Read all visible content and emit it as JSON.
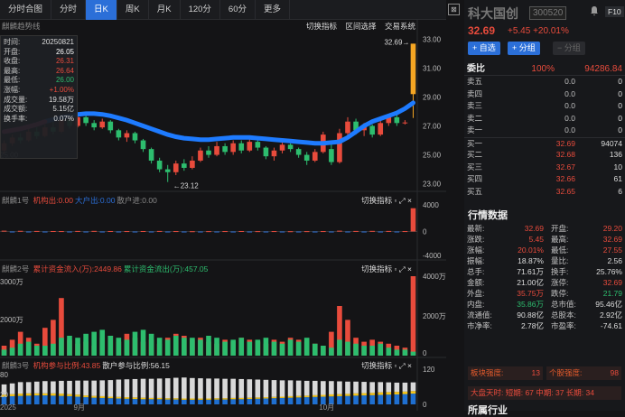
{
  "tabs": [
    "分时合图",
    "分时",
    "日K",
    "周K",
    "月K",
    "120分",
    "60分",
    "更多"
  ],
  "active_tab": "日K",
  "main_chart": {
    "indicator": "麒麟趋势线",
    "actions": [
      "切换指标",
      "区间选择",
      "交易系统"
    ],
    "high_label": "32.69",
    "low_label": "23.12",
    "y_ticks": [
      "33.00",
      "31.00",
      "29.00",
      "27.00",
      "25.00",
      "23.00"
    ]
  },
  "info_box": {
    "rows": [
      {
        "label": "时间:",
        "value": "20250821",
        "color": "#dddddd"
      },
      {
        "label": "开盘:",
        "value": "26.05",
        "color": "#ffffff"
      },
      {
        "label": "收盘:",
        "value": "26.31",
        "color": "#e84b3c"
      },
      {
        "label": "最高:",
        "value": "26.64",
        "color": "#e84b3c"
      },
      {
        "label": "最低:",
        "value": "26.00",
        "color": "#2dbd6e"
      },
      {
        "label": "涨幅:",
        "value": "+1.00%",
        "color": "#e84b3c"
      },
      {
        "label": "成交量:",
        "value": "19.58万",
        "color": "#dddddd"
      },
      {
        "label": "成交额:",
        "value": "5.15亿",
        "color": "#dddddd"
      },
      {
        "label": "换手率:",
        "value": "0.07%",
        "color": "#dddddd"
      }
    ]
  },
  "sub1": {
    "title": "麒麟1号",
    "items": [
      {
        "text": "机构出:0.00",
        "color": "#e84b3c"
      },
      {
        "text": "大户出:0.00",
        "color": "#2b6fd8"
      },
      {
        "text": "散户进:0.00",
        "color": "#888888"
      }
    ],
    "action": "切换指标",
    "y_ticks": [
      "4000",
      "0",
      "-4000"
    ]
  },
  "sub2": {
    "title": "麒麟2号",
    "items": [
      {
        "text": "累计资金流入(万):2449.86",
        "color": "#e84b3c"
      },
      {
        "text": "累计资金流出(万):457.05",
        "color": "#2dbd6e"
      }
    ],
    "action": "切换指标",
    "y_ticks": [
      "4000万",
      "2000万",
      "0"
    ],
    "left_ticks": [
      "3000万",
      "2000万"
    ]
  },
  "sub3": {
    "title": "麒麟3号",
    "items": [
      {
        "text": "机构参与比例:43.85",
        "color": "#e84b3c"
      },
      {
        "text": "散户参与比例:56.15",
        "color": "#dddddd"
      }
    ],
    "action": "切换指标",
    "y_ticks": [
      "120",
      "0"
    ],
    "left_ticks": [
      "80",
      "20"
    ]
  },
  "x_labels": [
    "2025",
    "9月",
    "10月"
  ],
  "stock": {
    "name": "科大国创",
    "code": "300520",
    "f10": "F10",
    "price": "32.69",
    "change": "+5.45",
    "pct": "+20.01%"
  },
  "buttons": {
    "add": "+ 自选",
    "group": "+ 分组",
    "ungroup": "− 分组"
  },
  "orderbook": {
    "title": "委比",
    "ratio": "100%",
    "diff": "94286.84",
    "rows": [
      {
        "label": "卖五",
        "price": "0.0",
        "qty": "0",
        "color": "#c0c0c0"
      },
      {
        "label": "卖四",
        "price": "0.0",
        "qty": "0",
        "color": "#c0c0c0"
      },
      {
        "label": "卖三",
        "price": "0.0",
        "qty": "0",
        "color": "#c0c0c0"
      },
      {
        "label": "卖二",
        "price": "0.0",
        "qty": "0",
        "color": "#c0c0c0"
      },
      {
        "label": "卖一",
        "price": "0.0",
        "qty": "0",
        "color": "#c0c0c0"
      },
      {
        "label": "买一",
        "price": "32.69",
        "qty": "94074",
        "color": "#e84b3c"
      },
      {
        "label": "买二",
        "price": "32.68",
        "qty": "136",
        "color": "#e84b3c"
      },
      {
        "label": "买三",
        "price": "32.67",
        "qty": "10",
        "color": "#e84b3c"
      },
      {
        "label": "买四",
        "price": "32.66",
        "qty": "61",
        "color": "#e84b3c"
      },
      {
        "label": "买五",
        "price": "32.65",
        "qty": "6",
        "color": "#e84b3c"
      }
    ]
  },
  "market": {
    "title": "行情数据",
    "rows": [
      {
        "l1": "最新:",
        "v1": "32.69",
        "c1": "#e84b3c",
        "l2": "开盘:",
        "v2": "29.20",
        "c2": "#e84b3c"
      },
      {
        "l1": "涨跌:",
        "v1": "5.45",
        "c1": "#e84b3c",
        "l2": "最高:",
        "v2": "32.69",
        "c2": "#e84b3c"
      },
      {
        "l1": "涨幅:",
        "v1": "20.01%",
        "c1": "#e84b3c",
        "l2": "最低:",
        "v2": "27.55",
        "c2": "#e84b3c"
      },
      {
        "l1": "振幅:",
        "v1": "18.87%",
        "c1": "#dddddd",
        "l2": "量比:",
        "v2": "2.56",
        "c2": "#dddddd"
      },
      {
        "l1": "总手:",
        "v1": "71.61万",
        "c1": "#dddddd",
        "l2": "换手:",
        "v2": "25.76%",
        "c2": "#dddddd"
      },
      {
        "l1": "金额:",
        "v1": "21.00亿",
        "c1": "#dddddd",
        "l2": "涨停:",
        "v2": "32.69",
        "c2": "#e84b3c"
      },
      {
        "l1": "外盘:",
        "v1": "35.75万",
        "c1": "#e84b3c",
        "l2": "跌停:",
        "v2": "21.79",
        "c2": "#2dbd6e"
      },
      {
        "l1": "内盘:",
        "v1": "35.86万",
        "c1": "#2dbd6e",
        "l2": "总市值:",
        "v2": "95.46亿",
        "c2": "#dddddd"
      },
      {
        "l1": "流通值:",
        "v1": "90.88亿",
        "c1": "#dddddd",
        "l2": "总股本:",
        "v2": "2.92亿",
        "c2": "#dddddd"
      },
      {
        "l1": "市净率:",
        "v1": "2.78亿",
        "c1": "#dddddd",
        "l2": "市盈率:",
        "v2": "-74.61",
        "c2": "#dddddd"
      }
    ]
  },
  "strength": {
    "block_label": "板块强度:",
    "block_value": "13",
    "stock_label": "个股强度:",
    "stock_value": "98"
  },
  "days": "大盘天时: 短期: 67 中期: 37 长期: 34",
  "industry_title": "所属行业",
  "candles": [
    {
      "o": 25.3,
      "c": 25.8,
      "h": 26.0,
      "l": 25.1
    },
    {
      "o": 25.8,
      "c": 26.2,
      "h": 26.4,
      "l": 25.6
    },
    {
      "o": 26.2,
      "c": 26.0,
      "h": 26.5,
      "l": 25.8
    },
    {
      "o": 26.0,
      "c": 26.6,
      "h": 26.8,
      "l": 25.9
    },
    {
      "o": 26.6,
      "c": 26.3,
      "h": 26.9,
      "l": 26.1
    },
    {
      "o": 26.3,
      "c": 26.9,
      "h": 27.1,
      "l": 26.2
    },
    {
      "o": 26.9,
      "c": 26.6,
      "h": 27.3,
      "l": 26.4
    },
    {
      "o": 26.6,
      "c": 27.4,
      "h": 27.6,
      "l": 26.5
    },
    {
      "o": 27.4,
      "c": 27.0,
      "h": 27.7,
      "l": 26.8
    },
    {
      "o": 27.0,
      "c": 27.6,
      "h": 27.9,
      "l": 26.9
    },
    {
      "o": 27.6,
      "c": 27.2,
      "h": 27.8,
      "l": 27.0
    },
    {
      "o": 27.2,
      "c": 26.9,
      "h": 27.4,
      "l": 26.7
    },
    {
      "o": 26.9,
      "c": 27.3,
      "h": 27.5,
      "l": 26.8
    },
    {
      "o": 27.3,
      "c": 26.7,
      "h": 27.4,
      "l": 26.5
    },
    {
      "o": 26.7,
      "c": 26.2,
      "h": 26.8,
      "l": 26.0
    },
    {
      "o": 26.2,
      "c": 26.5,
      "h": 26.7,
      "l": 25.9
    },
    {
      "o": 26.5,
      "c": 26.0,
      "h": 26.6,
      "l": 25.8
    },
    {
      "o": 26.0,
      "c": 25.4,
      "h": 26.1,
      "l": 25.2
    },
    {
      "o": 25.4,
      "c": 24.6,
      "h": 25.5,
      "l": 24.4
    },
    {
      "o": 24.6,
      "c": 24.0,
      "h": 24.8,
      "l": 23.8
    },
    {
      "o": 24.0,
      "c": 23.8,
      "h": 24.3,
      "l": 23.12
    },
    {
      "o": 23.8,
      "c": 24.4,
      "h": 24.6,
      "l": 23.6
    },
    {
      "o": 24.4,
      "c": 24.1,
      "h": 24.7,
      "l": 23.9
    },
    {
      "o": 24.1,
      "c": 24.6,
      "h": 24.9,
      "l": 24.0
    },
    {
      "o": 24.6,
      "c": 25.3,
      "h": 25.5,
      "l": 24.5
    },
    {
      "o": 25.3,
      "c": 25.0,
      "h": 25.6,
      "l": 24.8
    },
    {
      "o": 25.0,
      "c": 25.6,
      "h": 25.9,
      "l": 24.9
    },
    {
      "o": 25.6,
      "c": 25.2,
      "h": 25.8,
      "l": 25.0
    },
    {
      "o": 25.2,
      "c": 25.8,
      "h": 26.0,
      "l": 25.0
    },
    {
      "o": 25.8,
      "c": 25.3,
      "h": 26.0,
      "l": 25.1
    },
    {
      "o": 25.3,
      "c": 25.9,
      "h": 26.1,
      "l": 25.2
    },
    {
      "o": 25.9,
      "c": 25.5,
      "h": 26.0,
      "l": 25.3
    },
    {
      "o": 25.5,
      "c": 24.9,
      "h": 25.6,
      "l": 24.7
    },
    {
      "o": 24.9,
      "c": 25.3,
      "h": 25.5,
      "l": 24.6
    },
    {
      "o": 25.3,
      "c": 25.7,
      "h": 25.9,
      "l": 25.1
    },
    {
      "o": 25.7,
      "c": 25.4,
      "h": 25.8,
      "l": 25.2
    },
    {
      "o": 25.4,
      "c": 25.0,
      "h": 25.5,
      "l": 24.8
    },
    {
      "o": 25.0,
      "c": 24.6,
      "h": 25.2,
      "l": 24.3
    },
    {
      "o": 24.6,
      "c": 25.2,
      "h": 25.4,
      "l": 24.5
    },
    {
      "o": 25.2,
      "c": 26.4,
      "h": 26.6,
      "l": 25.1
    },
    {
      "o": 25.4,
      "c": 24.5,
      "h": 26.0,
      "l": 24.3
    },
    {
      "o": 24.5,
      "c": 26.5,
      "h": 26.8,
      "l": 24.4
    },
    {
      "o": 26.5,
      "c": 27.3,
      "h": 27.6,
      "l": 26.3
    },
    {
      "o": 27.3,
      "c": 26.7,
      "h": 27.5,
      "l": 26.4
    },
    {
      "o": 26.7,
      "c": 27.0,
      "h": 27.2,
      "l": 26.3
    },
    {
      "o": 27.0,
      "c": 26.4,
      "h": 27.1,
      "l": 26.2
    },
    {
      "o": 26.4,
      "c": 27.2,
      "h": 27.4,
      "l": 26.3
    },
    {
      "o": 27.2,
      "c": 27.6,
      "h": 27.8,
      "l": 27.0
    },
    {
      "o": 27.6,
      "c": 27.2,
      "h": 27.8,
      "l": 27.0
    },
    {
      "o": 27.2,
      "c": 27.24,
      "h": 27.4,
      "l": 27.1
    },
    {
      "o": 29.2,
      "c": 32.69,
      "h": 32.69,
      "l": 27.55
    }
  ],
  "trend": [
    26.6,
    26.7,
    26.8,
    26.95,
    27.1,
    27.3,
    27.45,
    27.6,
    27.7,
    27.8,
    27.85,
    27.85,
    27.8,
    27.7,
    27.55,
    27.4,
    27.2,
    27.0,
    26.8,
    26.6,
    26.4,
    26.25,
    26.15,
    26.1,
    26.05,
    26.05,
    26.1,
    26.15,
    26.2,
    26.2,
    26.2,
    26.15,
    26.1,
    26.05,
    26.0,
    25.95,
    25.9,
    25.85,
    25.8,
    25.8,
    25.85,
    25.9,
    26.2,
    26.6,
    27.0,
    27.3,
    27.5,
    27.7,
    27.9,
    28.2,
    28.6
  ],
  "flow_in": [
    500,
    800,
    1200,
    900,
    600,
    1400,
    1800,
    2900,
    800,
    600,
    700,
    500,
    900,
    1000,
    700,
    1100,
    900,
    700,
    800,
    600,
    900,
    1100,
    1000,
    800,
    900,
    700,
    600,
    800,
    700,
    900,
    800,
    700,
    600,
    800,
    700,
    900,
    800,
    700,
    600,
    500,
    1200,
    2500,
    1800,
    900,
    700,
    800,
    700,
    600,
    500,
    400,
    4000
  ],
  "flow_out": [
    300,
    400,
    600,
    700,
    500,
    500,
    600,
    900,
    1000,
    900,
    1100,
    1200,
    1300,
    1000,
    900,
    800,
    1200,
    1300,
    1100,
    900,
    800,
    1000,
    900,
    900,
    800,
    1000,
    900,
    700,
    800,
    900,
    700,
    800,
    900,
    700,
    600,
    800,
    700,
    900,
    600,
    500,
    400,
    800,
    700,
    600,
    500,
    500,
    600,
    400,
    300,
    300,
    200
  ],
  "sub1_vals": [
    120,
    -80,
    100,
    -60,
    80,
    -90,
    70,
    60,
    -50,
    80,
    -70,
    90,
    -60,
    70,
    -80,
    60,
    -50,
    70,
    -60,
    80,
    -70,
    60,
    -50,
    40,
    -60,
    50,
    -40,
    60,
    -50,
    70,
    -60,
    50,
    -40,
    60,
    -50,
    40,
    -60,
    50,
    -40,
    60,
    -80,
    120,
    -60,
    80,
    -70,
    90,
    -60,
    80,
    -100,
    60,
    3500
  ],
  "sub3_white": [
    40,
    42,
    45,
    44,
    46,
    48,
    47,
    50,
    52,
    55,
    58,
    60,
    62,
    65,
    68,
    70,
    72,
    74,
    75,
    76,
    78,
    80,
    82,
    80,
    79,
    78,
    77,
    76,
    75,
    74,
    72,
    70,
    68,
    66,
    64,
    62,
    60,
    58,
    56,
    54,
    52,
    50,
    48,
    46,
    44,
    42,
    40,
    38,
    36,
    35,
    34
  ],
  "sub3_yellow": [
    8,
    8,
    9,
    9,
    8,
    8,
    9,
    9,
    8,
    8,
    7,
    7,
    7,
    6,
    6,
    6,
    6,
    6,
    5,
    5,
    5,
    5,
    5,
    5,
    5,
    5,
    5,
    5,
    5,
    5,
    5,
    5,
    5,
    5,
    5,
    6,
    6,
    6,
    7,
    7,
    8,
    8,
    8,
    9,
    9,
    9,
    10,
    10,
    10,
    10,
    10
  ],
  "sub3_blue": [
    30,
    32,
    33,
    34,
    35,
    35,
    34,
    33,
    32,
    30,
    28,
    26,
    25,
    24,
    23,
    22,
    21,
    20,
    20,
    20,
    19,
    19,
    18,
    18,
    18,
    18,
    19,
    19,
    20,
    20,
    21,
    22,
    23,
    24,
    25,
    26,
    27,
    28,
    29,
    30,
    31,
    32,
    33,
    34,
    35,
    36,
    37,
    38,
    39,
    40,
    42
  ]
}
